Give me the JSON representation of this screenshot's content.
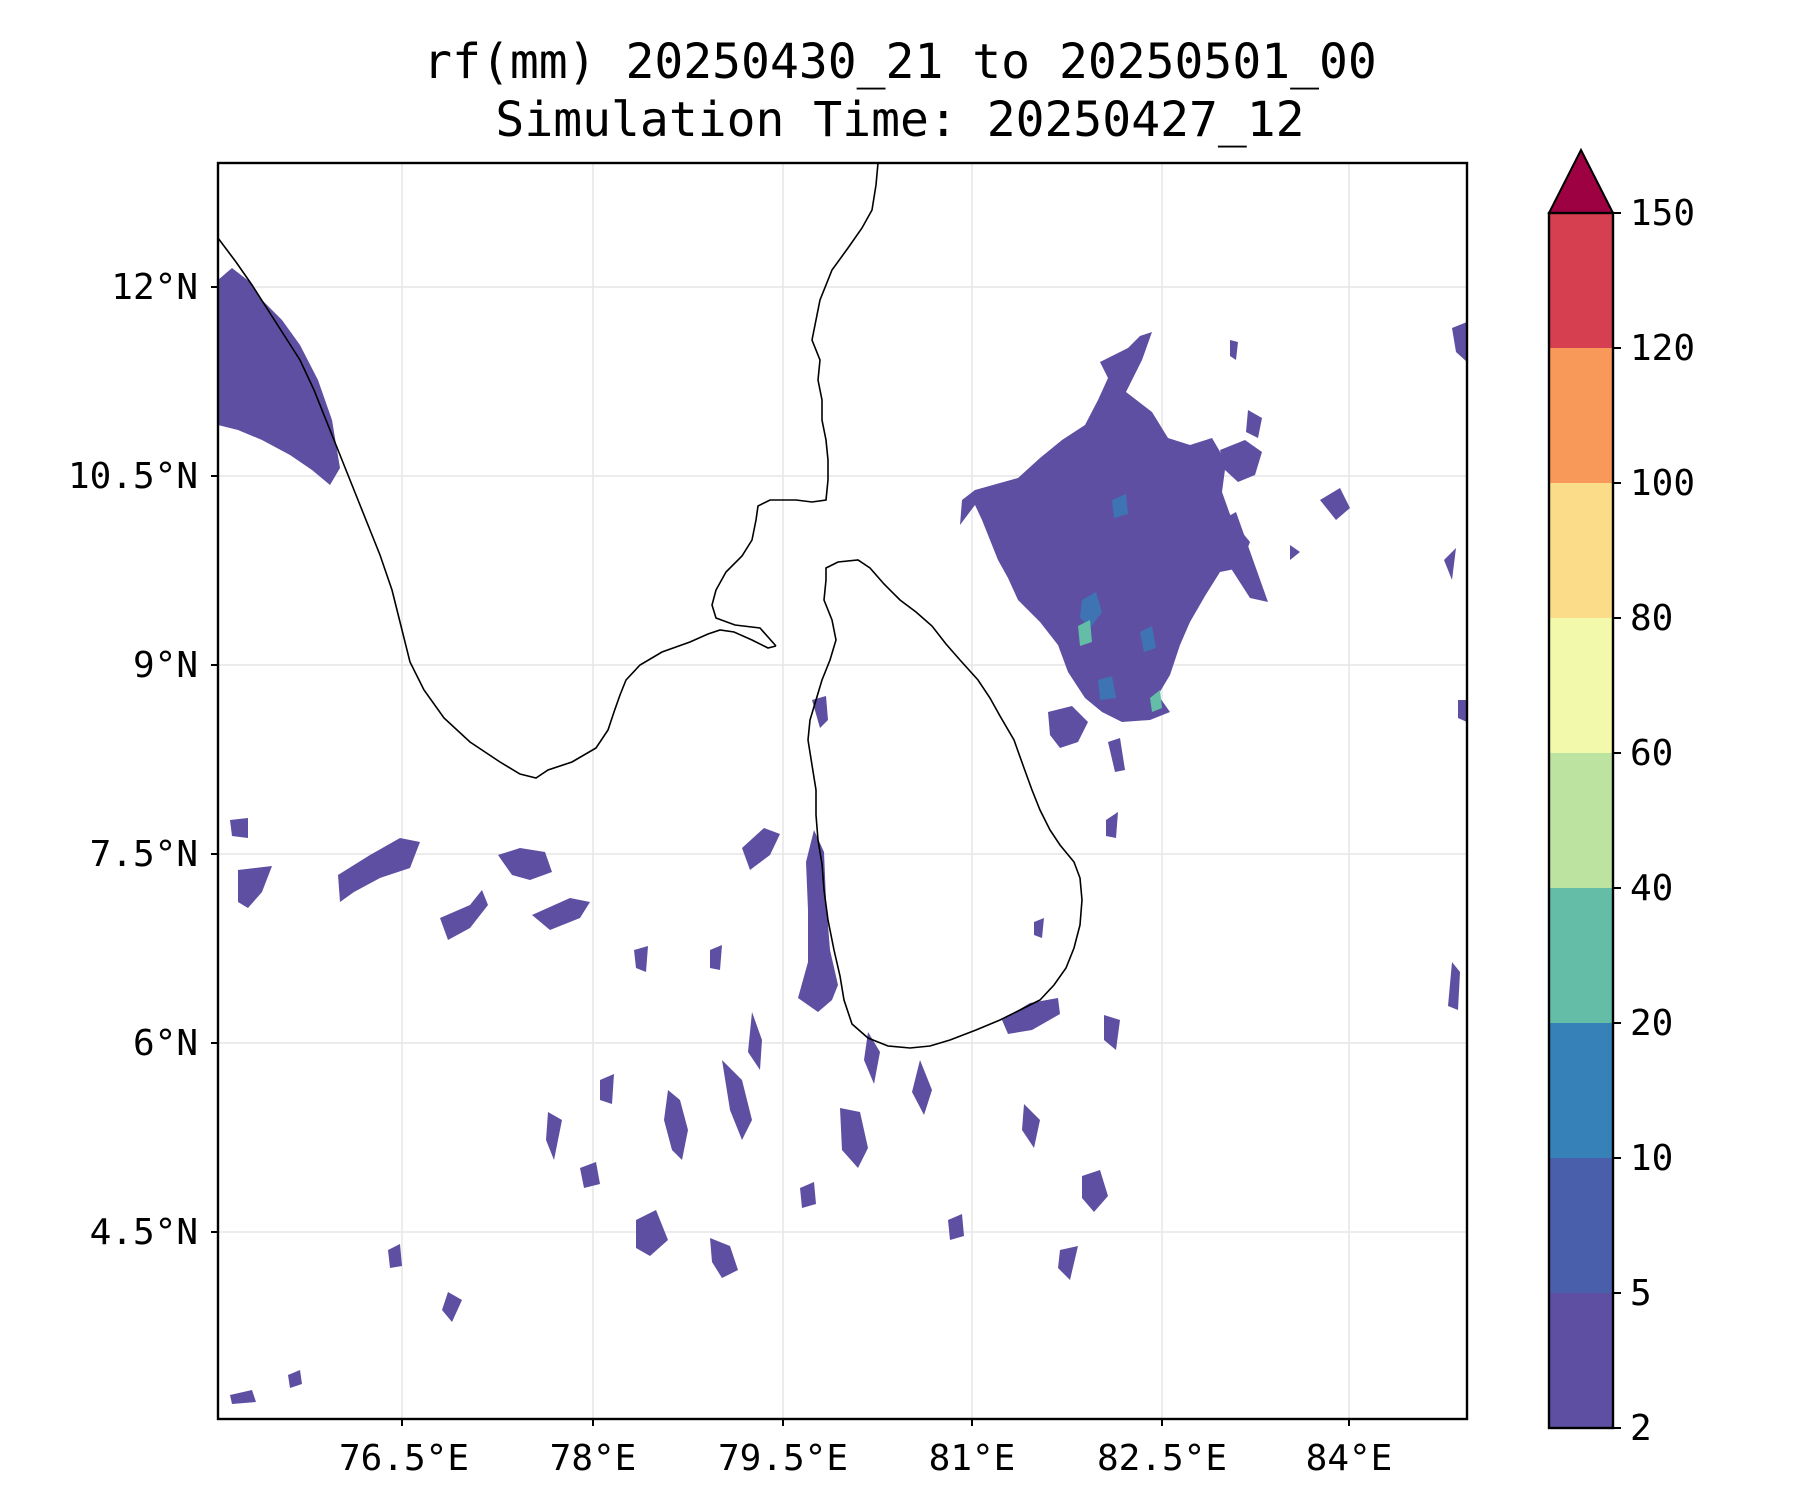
{
  "title": {
    "line1": "rf(mm) 20250430_21 to 20250501_00",
    "line2": "Simulation Time: 20250427_12"
  },
  "map": {
    "lon_ticks": [
      "76.5°E",
      "78°E",
      "79.5°E",
      "81°E",
      "82.5°E",
      "84°E"
    ],
    "lat_ticks": [
      "12°N",
      "10.5°N",
      "9°N",
      "7.5°N",
      "6°N",
      "4.5°N"
    ],
    "extent": {
      "lon_min": 75.0,
      "lon_max": 84.9,
      "lat_min": 3.15,
      "lat_max": 13.1
    },
    "grid": true
  },
  "colorbar": {
    "labels": [
      "2",
      "5",
      "10",
      "20",
      "40",
      "60",
      "80",
      "100",
      "120",
      "150"
    ],
    "colors": [
      "#5e4fa2",
      "#4a5fab",
      "#3681b8",
      "#64bda7",
      "#bde3a0",
      "#f3f9ab",
      "#fbdd89",
      "#f8995a",
      "#d53f4f",
      "#9e0142"
    ],
    "extend": "max"
  }
}
